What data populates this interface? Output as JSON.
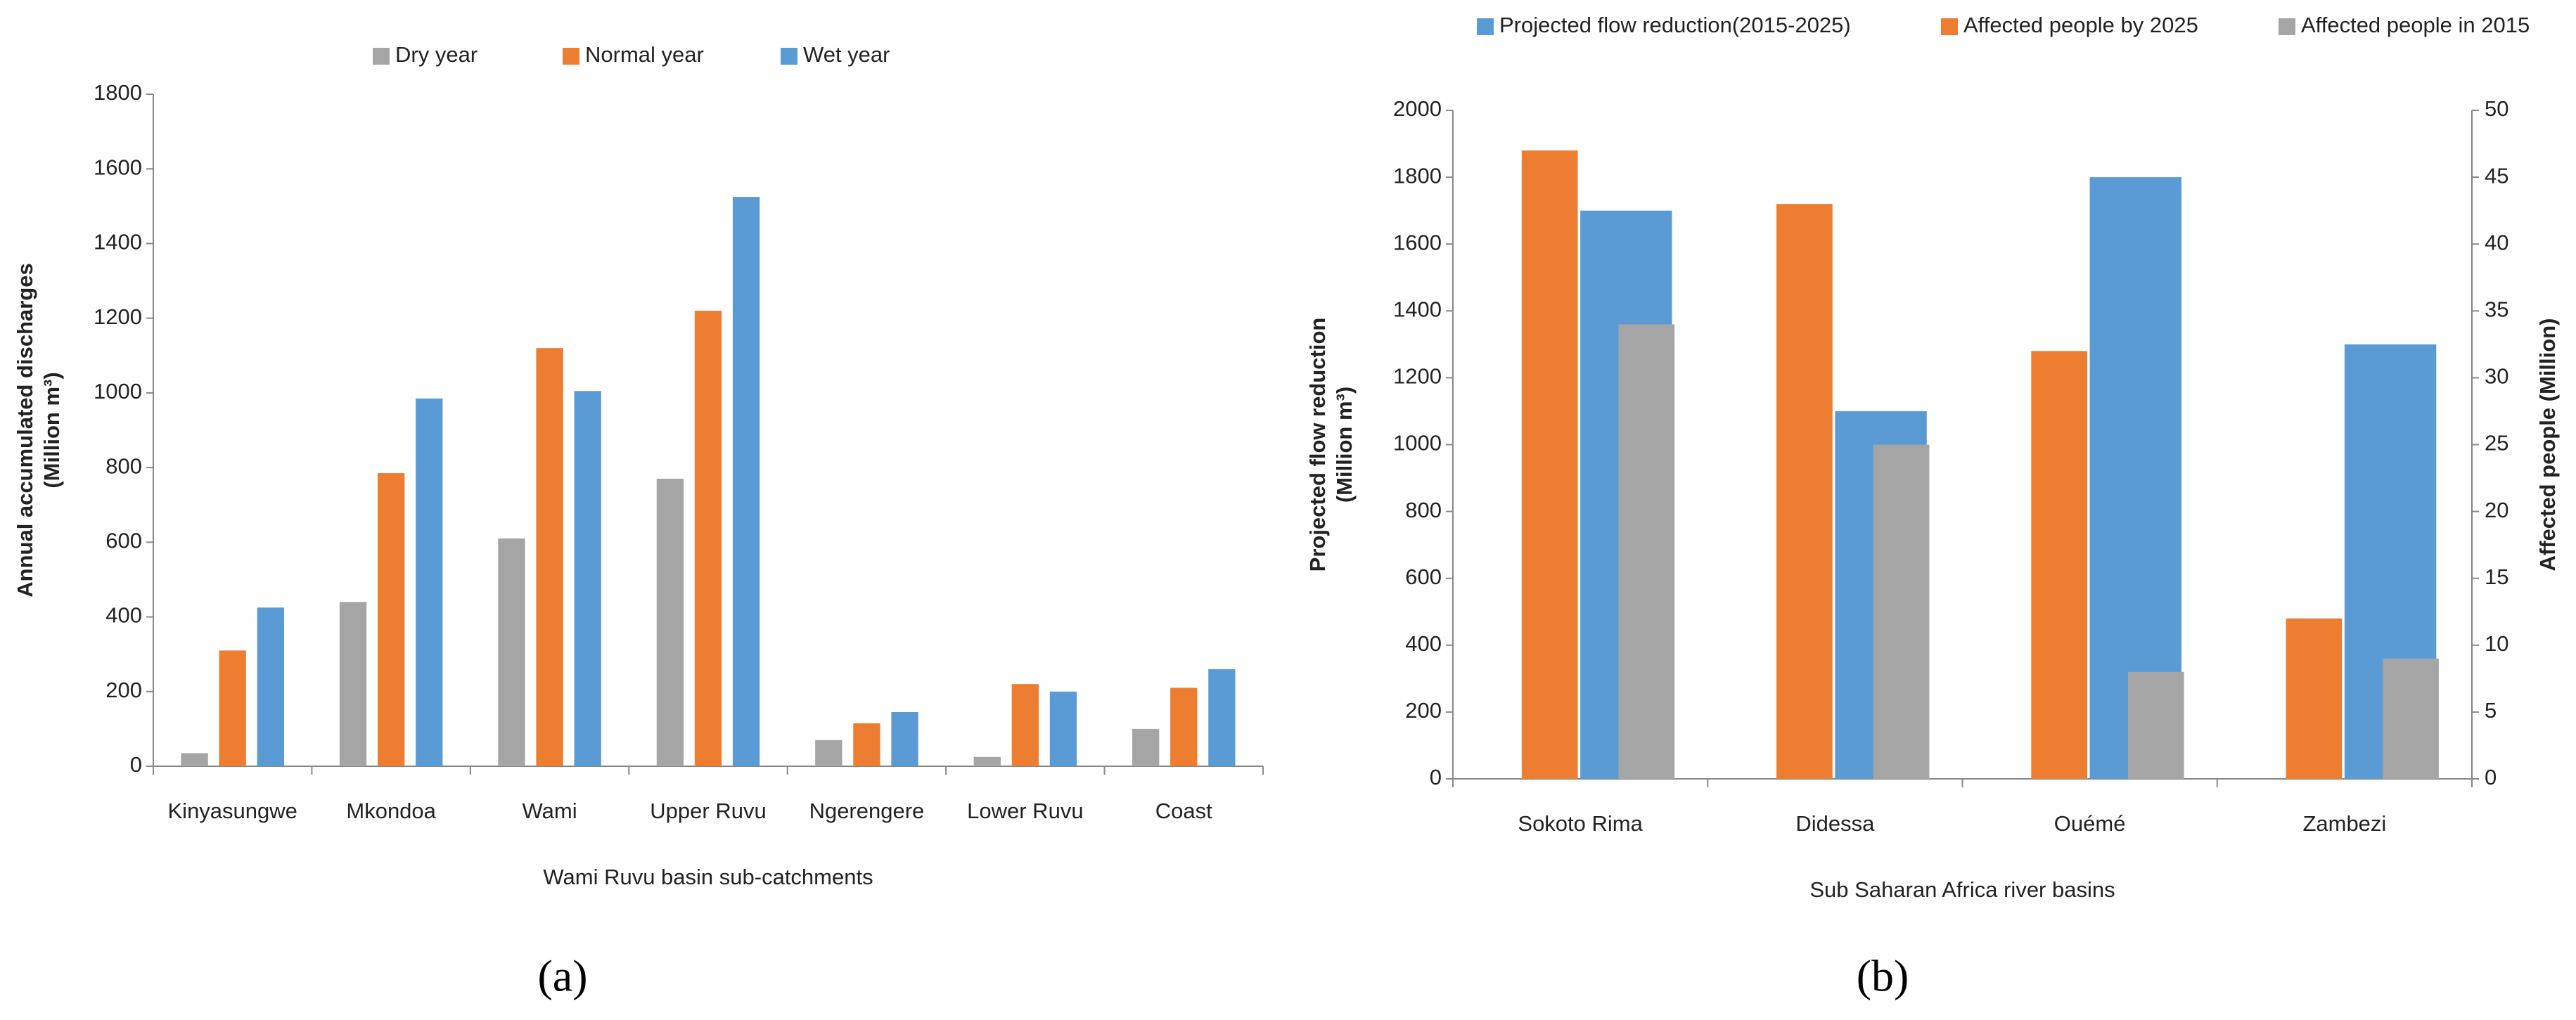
{
  "chart_data": [
    {
      "type": "bar",
      "categories": [
        "Kinyasungwe",
        "Mkondoa",
        "Wami",
        "Upper Ruvu",
        "Ngerengere",
        "Lower Ruvu",
        "Coast"
      ],
      "series": [
        {
          "name": "Dry year",
          "color": "#a5a5a5",
          "values": [
            35,
            440,
            610,
            770,
            70,
            25,
            100
          ]
        },
        {
          "name": "Normal year",
          "color": "#ed7d31",
          "values": [
            310,
            785,
            1120,
            1220,
            115,
            220,
            210
          ]
        },
        {
          "name": "Wet year",
          "color": "#5b9bd5",
          "values": [
            425,
            985,
            1005,
            1525,
            145,
            200,
            260
          ]
        }
      ],
      "ylim": [
        0,
        1800
      ],
      "yticks": [
        0,
        200,
        400,
        600,
        800,
        1000,
        1200,
        1400,
        1600,
        1800
      ],
      "xlabel": "Wami Ruvu  basin sub-catchments",
      "ylabel": [
        "Annual accumulated discharges",
        "(Million m³)"
      ],
      "caption": "(a)"
    },
    {
      "type": "bar",
      "categories": [
        "Sokoto Rima",
        "Didessa",
        "Ouémé",
        "Zambezi"
      ],
      "series": [
        {
          "name": "Projected flow reduction(2015-2025)",
          "color": "#5b9bd5",
          "values": [
            1700,
            1100,
            1800,
            1300
          ]
        },
        {
          "name": "Affected people by 2025",
          "color": "#ed7d31",
          "axis": "y2",
          "values": [
            47,
            43,
            32,
            12
          ]
        },
        {
          "name": "Affected people in 2015",
          "color": "#a5a5a5",
          "axis": "y2",
          "values": [
            34,
            25,
            8,
            9
          ]
        }
      ],
      "ylim": [
        0,
        2000
      ],
      "yticks": [
        0,
        200,
        400,
        600,
        800,
        1000,
        1200,
        1400,
        1600,
        1800,
        2000
      ],
      "y2lim": [
        0,
        50
      ],
      "y2ticks": [
        0,
        5,
        10,
        15,
        20,
        25,
        30,
        35,
        40,
        45,
        50
      ],
      "xlabel": "Sub Saharan Africa river basins",
      "ylabel": [
        "Projected  flow reduction",
        "(Million m³)"
      ],
      "y2label": "Affected people (Million)",
      "caption": "(b)"
    }
  ]
}
